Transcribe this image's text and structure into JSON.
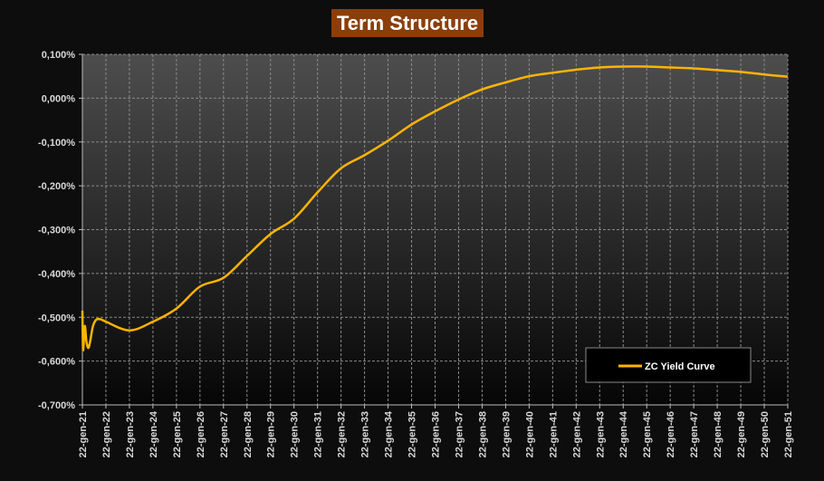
{
  "chart_data": {
    "type": "line",
    "title": "Term Structure",
    "xlabel": "",
    "ylabel": "",
    "ylim": [
      -0.7,
      0.1
    ],
    "y_ticks": [
      "0,100%",
      "0,000%",
      "-0,100%",
      "-0,200%",
      "-0,300%",
      "-0,400%",
      "-0,500%",
      "-0,600%",
      "-0,700%"
    ],
    "x_ticks": [
      "22-gen-21",
      "22-gen-22",
      "22-gen-23",
      "22-gen-24",
      "22-gen-25",
      "22-gen-26",
      "22-gen-27",
      "22-gen-28",
      "22-gen-29",
      "22-gen-30",
      "22-gen-31",
      "22-gen-32",
      "22-gen-33",
      "22-gen-34",
      "22-gen-35",
      "22-gen-36",
      "22-gen-37",
      "22-gen-38",
      "22-gen-39",
      "22-gen-40",
      "22-gen-41",
      "22-gen-42",
      "22-gen-43",
      "22-gen-44",
      "22-gen-45",
      "22-gen-46",
      "22-gen-47",
      "22-gen-48",
      "22-gen-49",
      "22-gen-50",
      "22-gen-51"
    ],
    "grid": true,
    "legend_position": "bottom-right",
    "series": [
      {
        "name": "ZC Yield Curve",
        "color": "#ffb400",
        "x": [
          2021,
          2021.03,
          2021.1,
          2021.17,
          2021.25,
          2021.33,
          2021.45,
          2021.6,
          2021.8,
          2022,
          2023,
          2024,
          2025,
          2026,
          2027,
          2028,
          2029,
          2030,
          2031,
          2032,
          2033,
          2034,
          2035,
          2036,
          2037,
          2038,
          2039,
          2040,
          2041,
          2042,
          2043,
          2044,
          2045,
          2046,
          2047,
          2048,
          2049,
          2050,
          2051
        ],
        "values": [
          -0.485,
          -0.575,
          -0.52,
          -0.555,
          -0.57,
          -0.555,
          -0.52,
          -0.505,
          -0.505,
          -0.51,
          -0.53,
          -0.51,
          -0.48,
          -0.43,
          -0.41,
          -0.36,
          -0.31,
          -0.275,
          -0.215,
          -0.16,
          -0.13,
          -0.097,
          -0.06,
          -0.03,
          -0.003,
          0.02,
          0.036,
          0.05,
          0.058,
          0.065,
          0.07,
          0.072,
          0.072,
          0.07,
          0.068,
          0.064,
          0.06,
          0.054,
          0.049
        ]
      }
    ]
  }
}
